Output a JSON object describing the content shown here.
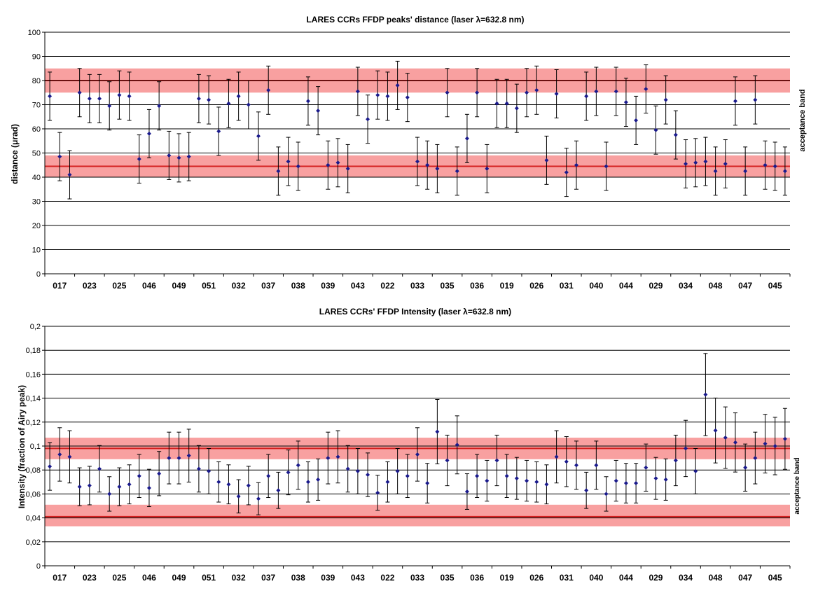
{
  "chart_data": [
    {
      "type": "scatter",
      "title": "LARES CCRs FFDP peaks' distance (laser λ=632.8 nm)",
      "ylabel": "distance (μrad)",
      "side_label": "acceptance band",
      "ylim": [
        0,
        100
      ],
      "yticks": [
        "0",
        "10",
        "20",
        "30",
        "40",
        "50",
        "60",
        "70",
        "80",
        "90",
        "100"
      ],
      "categories": [
        "017",
        "023",
        "025",
        "046",
        "049",
        "051",
        "032",
        "037",
        "038",
        "039",
        "043",
        "022",
        "033",
        "035",
        "036",
        "019",
        "026",
        "031",
        "040",
        "044",
        "029",
        "034",
        "048",
        "047",
        "045"
      ],
      "bands": [
        {
          "center": 80,
          "low": 75,
          "high": 85,
          "color": "#f8a0a0",
          "line": "#d42020"
        },
        {
          "center": 44.5,
          "low": 40,
          "high": 49,
          "color": "#f8a0a0",
          "line": "#d42020"
        }
      ],
      "grid": true,
      "series": [
        {
          "marker_color": "#1a1a8c",
          "err_color": "#000000",
          "err": 10,
          "values": [
            73.5,
            48.5,
            41,
            75,
            72.5,
            72.5,
            69.5,
            74,
            73.5,
            47.5,
            58,
            69.5,
            49,
            48,
            48.5,
            72.5,
            72,
            59,
            70.5,
            73.5,
            70,
            57,
            76,
            42.5,
            46.5,
            44.5,
            71.5,
            67.5,
            45,
            46,
            43.5,
            75.5,
            64,
            74,
            73.5,
            78,
            73,
            46.5,
            45,
            43.5,
            75,
            42.5,
            56,
            75,
            43.5,
            70.5,
            70.5,
            68.5,
            75,
            76,
            47,
            74.5,
            42,
            45,
            73.5,
            75.5,
            44.5,
            75.5,
            71,
            63.5,
            76.5,
            59.5,
            72,
            57.5,
            45.5,
            46,
            46.5,
            42.5,
            45.5,
            71.5,
            42.5,
            72,
            45,
            44.5,
            42.5
          ]
        }
      ]
    },
    {
      "type": "scatter",
      "title": "LARES CCRs' FFDP Intensity  (laser λ=632.8 nm)",
      "ylabel": "Intensity (fraction of Airy peak)",
      "side_label": "acceptance band",
      "ylim": [
        0,
        0.2
      ],
      "yticks": [
        "0",
        "0,02",
        "0,04",
        "0,06",
        "0,08",
        "0,1",
        "0,12",
        "0,14",
        "0,16",
        "0,18",
        "0,2"
      ],
      "categories": [
        "017",
        "023",
        "025",
        "046",
        "049",
        "051",
        "032",
        "037",
        "038",
        "039",
        "043",
        "022",
        "033",
        "035",
        "036",
        "019",
        "026",
        "031",
        "040",
        "044",
        "029",
        "034",
        "048",
        "047",
        "045"
      ],
      "bands": [
        {
          "center": 0.098,
          "low": 0.089,
          "high": 0.107,
          "color": "#f8a0a0",
          "line": "#d42020"
        },
        {
          "center": 0.041,
          "low": 0.033,
          "high": 0.051,
          "color": "#f8a0a0",
          "line": "#d42020"
        }
      ],
      "grid": true,
      "series": [
        {
          "marker_color": "#1a1a8c",
          "err_color": "#000000",
          "err_frac": 0.24,
          "values": [
            0.083,
            0.093,
            0.091,
            0.066,
            0.067,
            0.081,
            0.06,
            0.066,
            0.068,
            0.075,
            0.065,
            0.077,
            0.09,
            0.09,
            0.092,
            0.081,
            0.079,
            0.07,
            0.068,
            0.058,
            0.067,
            0.056,
            0.075,
            0.063,
            0.078,
            0.084,
            0.07,
            0.072,
            0.09,
            0.091,
            0.081,
            0.079,
            0.076,
            0.061,
            0.07,
            0.079,
            0.075,
            0.093,
            0.069,
            0.112,
            0.088,
            0.101,
            0.062,
            0.075,
            0.071,
            0.088,
            0.075,
            0.073,
            0.071,
            0.07,
            0.068,
            0.091,
            0.087,
            0.084,
            0.063,
            0.084,
            0.06,
            0.071,
            0.069,
            0.069,
            0.082,
            0.073,
            0.072,
            0.088,
            0.098,
            0.079,
            0.143,
            0.113,
            0.107,
            0.103,
            0.082,
            0.09,
            0.102,
            0.1,
            0.106
          ]
        }
      ]
    }
  ]
}
